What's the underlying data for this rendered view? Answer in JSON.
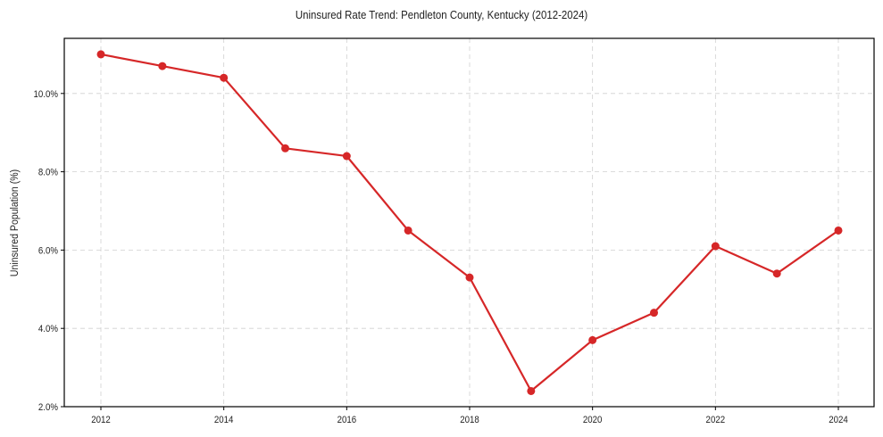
{
  "chart_data": {
    "type": "line",
    "title": "Uninsured Rate Trend: Pendleton County, Kentucky (2012-2024)",
    "xlabel": "",
    "ylabel": "Uninsured Population (%)",
    "x": [
      2012,
      2013,
      2014,
      2015,
      2016,
      2017,
      2018,
      2019,
      2020,
      2021,
      2022,
      2023,
      2024
    ],
    "series": [
      {
        "name": "Uninsured Rate",
        "color": "#d62728",
        "values": [
          11.0,
          10.7,
          10.4,
          8.6,
          8.4,
          6.5,
          5.3,
          2.4,
          3.7,
          4.4,
          6.1,
          5.4,
          6.5
        ]
      }
    ],
    "xticks": [
      "2012",
      "2014",
      "2016",
      "2018",
      "2020",
      "2022",
      "2024"
    ],
    "yticks": [
      "2.0%",
      "4.0%",
      "6.0%",
      "8.0%",
      "10.0%"
    ],
    "ylim": [
      2.0,
      11.5
    ],
    "xlim": [
      2011.4,
      2024.6
    ],
    "grid": true,
    "legend": null
  }
}
